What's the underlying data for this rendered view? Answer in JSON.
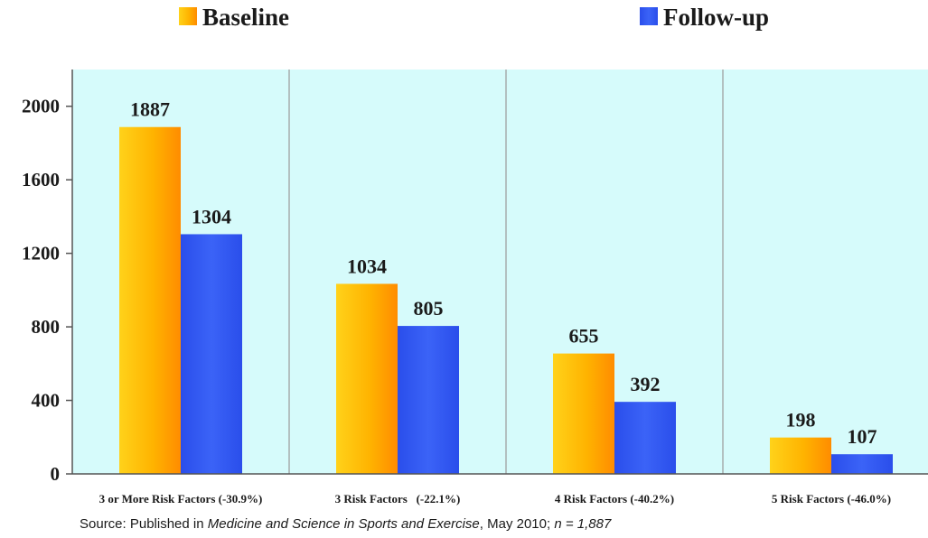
{
  "chart_data": {
    "type": "bar",
    "categories": [
      "3 or More Risk Factors (-30.9%)",
      "3 Risk Factors   (-22.1%)",
      "4 Risk Factors (-40.2%)",
      "5 Risk Factors (-46.0%)"
    ],
    "series": [
      {
        "name": "Baseline",
        "values": [
          1887,
          1034,
          655,
          198
        ],
        "color": "#FFB000"
      },
      {
        "name": "Follow-up",
        "values": [
          1304,
          805,
          392,
          107
        ],
        "color": "#2E55F0"
      }
    ],
    "yticks": [
      0,
      400,
      800,
      1200,
      1600,
      2000
    ],
    "ylim": [
      0,
      2200
    ],
    "grid": false,
    "legend_position": "top",
    "plot_background": "#D6FBFB",
    "source": {
      "prefix": "Source: Published in ",
      "journal": "Medicine and Science in Sports and Exercise",
      "date": ", May 2010; ",
      "n": "n = 1,887"
    }
  }
}
